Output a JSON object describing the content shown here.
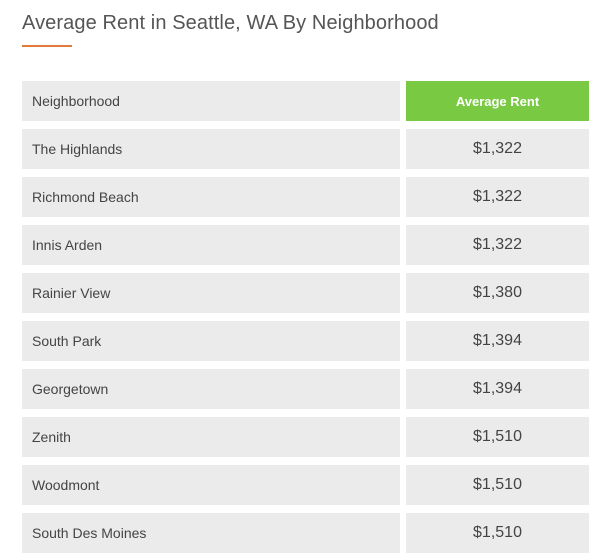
{
  "title": "Average Rent in Seattle, WA By Neighborhood",
  "colors": {
    "accent_underline": "#e07b3a",
    "header_green": "#7ac943",
    "row_background": "#ebebeb"
  },
  "table": {
    "headers": {
      "neighborhood": "Neighborhood",
      "average_rent": "Average Rent"
    },
    "rows": [
      {
        "neighborhood": "The Highlands",
        "rent": "$1,322"
      },
      {
        "neighborhood": "Richmond Beach",
        "rent": "$1,322"
      },
      {
        "neighborhood": "Innis Arden",
        "rent": "$1,322"
      },
      {
        "neighborhood": "Rainier View",
        "rent": "$1,380"
      },
      {
        "neighborhood": "South Park",
        "rent": "$1,394"
      },
      {
        "neighborhood": "Georgetown",
        "rent": "$1,394"
      },
      {
        "neighborhood": "Zenith",
        "rent": "$1,510"
      },
      {
        "neighborhood": "Woodmont",
        "rent": "$1,510"
      },
      {
        "neighborhood": "South Des Moines",
        "rent": "$1,510"
      }
    ]
  }
}
